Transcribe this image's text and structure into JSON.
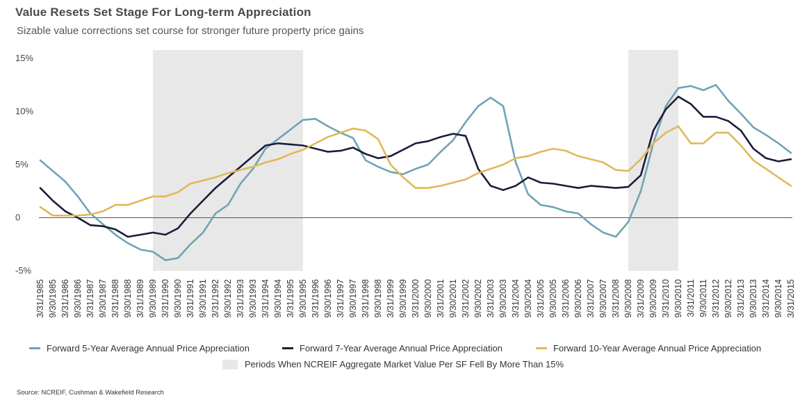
{
  "title": "Value Resets Set Stage For Long-term Appreciation",
  "subtitle": "Sizable value corrections set course for stronger future property price gains",
  "source": "Source: NCREIF, Cushman & Wakefield Research",
  "chart_data": {
    "type": "line",
    "ylim": [
      -5,
      15
    ],
    "y_ticks": [
      {
        "value": 15,
        "label": "15%"
      },
      {
        "value": 10,
        "label": "10%"
      },
      {
        "value": 5,
        "label": "5%"
      },
      {
        "value": 0,
        "label": "0"
      },
      {
        "value": -5,
        "label": "-5%"
      }
    ],
    "x_tick_labels": [
      "3/31/1985",
      "9/30/1985",
      "3/31/1986",
      "9/30/1986",
      "3/31/1987",
      "9/30/1987",
      "3/31/1988",
      "9/30/1988",
      "3/31/1989",
      "9/30/1989",
      "3/31/1990",
      "9/30/1990",
      "3/31/1991",
      "9/30/1991",
      "3/31/1992",
      "9/30/1992",
      "3/31/1993",
      "9/30/1993",
      "3/31/1994",
      "9/30/1994",
      "3/31/1995",
      "9/30/1995",
      "3/31/1996",
      "9/30/1996",
      "3/31/1997",
      "9/30/1997",
      "3/31/1998",
      "9/30/1998",
      "3/31/1999",
      "9/30/1999",
      "3/31/2000",
      "9/30/2000",
      "3/31/2001",
      "9/30/2001",
      "3/31/2002",
      "9/30/2002",
      "3/31/2003",
      "9/30/2003",
      "3/31/2004",
      "9/30/2004",
      "3/31/2005",
      "9/30/2005",
      "3/31/2006",
      "9/30/2006",
      "3/31/2007",
      "9/30/2007",
      "3/31/2008",
      "9/30/2008",
      "3/31/2009",
      "9/30/2009",
      "3/31/2010",
      "9/30/2010",
      "3/31/2011",
      "9/30/2011",
      "3/31/2012",
      "9/30/2012",
      "3/31/2013",
      "9/30/2013",
      "3/31/2014",
      "9/30/2014",
      "3/31/2015"
    ],
    "shaded_periods": [
      {
        "start": "9/30/1989",
        "end": "9/30/1995"
      },
      {
        "start": "9/30/2008",
        "end": "9/30/2010"
      }
    ],
    "shaded_label": "Periods When NCREIF Aggregate Market Value Per SF Fell By More Than 15%",
    "grid": false,
    "legend_position": "bottom",
    "series": [
      {
        "name": "Forward 5-Year Average Annual Price Appreciation",
        "color": "#6fa3b5",
        "values": [
          5.4,
          4.4,
          3.4,
          2.0,
          0.4,
          -0.6,
          -1.6,
          -2.4,
          -3.0,
          -3.2,
          -4.0,
          -3.8,
          -2.5,
          -1.4,
          0.4,
          1.2,
          3.2,
          4.6,
          6.5,
          7.4,
          8.3,
          9.2,
          9.3,
          8.6,
          8.0,
          7.5,
          5.4,
          4.8,
          4.3,
          4.1,
          4.6,
          5.0,
          6.2,
          7.3,
          9.0,
          10.5,
          11.3,
          10.5,
          5.2,
          2.2,
          1.2,
          1.0,
          0.6,
          0.4,
          -0.6,
          -1.4,
          -1.8,
          -0.4,
          2.5,
          7.0,
          10.5,
          12.2,
          12.4,
          12.0,
          12.5,
          11.0,
          9.8,
          8.5,
          7.8,
          7.0,
          6.1
        ]
      },
      {
        "name": "Forward 7-Year Average Annual Price Appreciation",
        "color": "#1b1b3a",
        "values": [
          2.8,
          1.6,
          0.6,
          0.0,
          -0.7,
          -0.8,
          -1.1,
          -1.8,
          -1.6,
          -1.4,
          -1.6,
          -1.0,
          0.4,
          1.6,
          2.8,
          3.8,
          4.8,
          5.8,
          6.8,
          7.0,
          6.9,
          6.8,
          6.5,
          6.2,
          6.3,
          6.6,
          6.0,
          5.6,
          5.8,
          6.4,
          7.0,
          7.2,
          7.6,
          7.9,
          7.7,
          4.6,
          3.0,
          2.6,
          3.0,
          3.8,
          3.3,
          3.2,
          3.0,
          2.8,
          3.0,
          2.9,
          2.8,
          2.9,
          4.0,
          8.2,
          10.2,
          11.4,
          10.7,
          9.5,
          9.5,
          9.1,
          8.2,
          6.5,
          5.6,
          5.3,
          5.5
        ]
      },
      {
        "name": "Forward 10-Year Average Annual Price Appreciation",
        "color": "#e0b85a",
        "values": [
          1.0,
          0.2,
          0.2,
          0.2,
          0.3,
          0.6,
          1.2,
          1.2,
          1.6,
          2.0,
          2.0,
          2.4,
          3.2,
          3.5,
          3.8,
          4.2,
          4.5,
          4.8,
          5.2,
          5.5,
          6.0,
          6.4,
          7.0,
          7.6,
          8.0,
          8.4,
          8.2,
          7.4,
          5.0,
          3.8,
          2.8,
          2.8,
          3.0,
          3.3,
          3.6,
          4.2,
          4.6,
          5.0,
          5.6,
          5.8,
          6.2,
          6.5,
          6.3,
          5.8,
          5.5,
          5.2,
          4.5,
          4.4,
          5.5,
          7.0,
          8.0,
          8.6,
          7.0,
          7.0,
          8.0,
          8.0,
          6.8,
          5.4,
          4.6,
          3.8,
          3.0
        ]
      }
    ]
  }
}
